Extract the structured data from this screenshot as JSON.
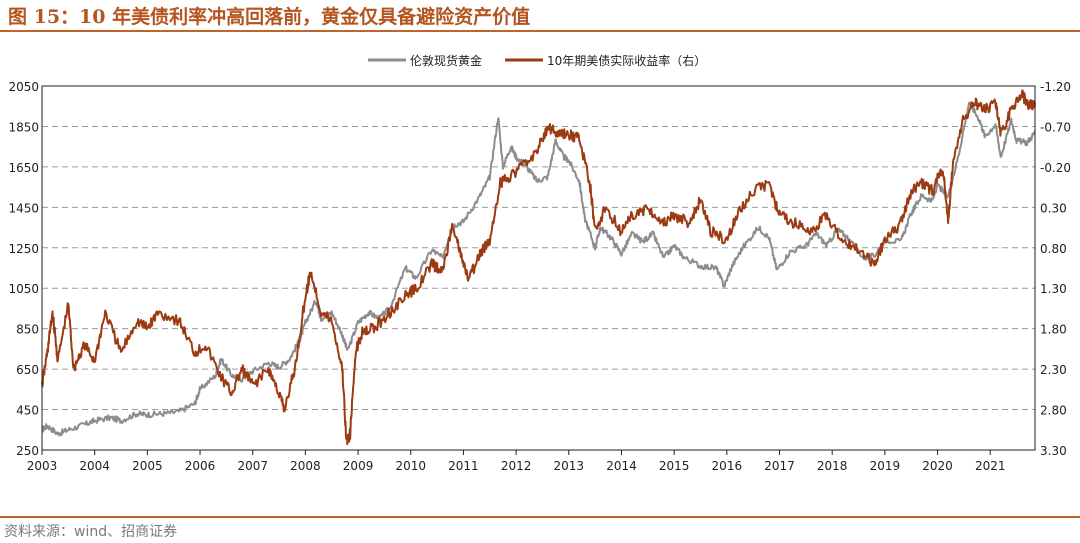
{
  "title": "图 15：10 年美债利率冲高回落前，黄金仅具备避险资产价值",
  "source": "资料来源：wind、招商证券",
  "chart_data": {
    "type": "line",
    "legend_position": "top-center",
    "grid": "horizontal-dashed",
    "x_ticks": [
      "2003",
      "2004",
      "2005",
      "2006",
      "2007",
      "2008",
      "2009",
      "2010",
      "2011",
      "2012",
      "2013",
      "2014",
      "2015",
      "2016",
      "2017",
      "2018",
      "2019",
      "2020",
      "2021"
    ],
    "x_range": [
      2003.0,
      2021.85
    ],
    "y_left": {
      "range": [
        250,
        2050
      ],
      "ticks": [
        "250",
        "450",
        "650",
        "850",
        "1050",
        "1250",
        "1450",
        "1650",
        "1850",
        "2050"
      ]
    },
    "y_right": {
      "range": [
        3.3,
        -1.2
      ],
      "inverted": true,
      "ticks": [
        "-1.20",
        "-0.70",
        "-0.20",
        "0.30",
        "0.80",
        "1.30",
        "1.80",
        "2.30",
        "2.80",
        "3.30"
      ]
    },
    "series": [
      {
        "name": "伦敦现货黄金",
        "axis": "left",
        "color": "#8c8c8c",
        "points": [
          [
            2003.0,
            350
          ],
          [
            2003.1,
            370
          ],
          [
            2003.3,
            330
          ],
          [
            2003.5,
            350
          ],
          [
            2003.8,
            375
          ],
          [
            2004.0,
            395
          ],
          [
            2004.3,
            410
          ],
          [
            2004.5,
            395
          ],
          [
            2004.8,
            430
          ],
          [
            2005.0,
            425
          ],
          [
            2005.3,
            430
          ],
          [
            2005.6,
            440
          ],
          [
            2005.9,
            480
          ],
          [
            2006.0,
            550
          ],
          [
            2006.3,
            620
          ],
          [
            2006.4,
            700
          ],
          [
            2006.6,
            620
          ],
          [
            2006.8,
            600
          ],
          [
            2007.0,
            640
          ],
          [
            2007.3,
            680
          ],
          [
            2007.5,
            660
          ],
          [
            2007.7,
            700
          ],
          [
            2007.9,
            800
          ],
          [
            2008.0,
            880
          ],
          [
            2008.2,
            990
          ],
          [
            2008.3,
            900
          ],
          [
            2008.5,
            930
          ],
          [
            2008.7,
            820
          ],
          [
            2008.8,
            740
          ],
          [
            2009.0,
            880
          ],
          [
            2009.2,
            930
          ],
          [
            2009.4,
            900
          ],
          [
            2009.6,
            950
          ],
          [
            2009.9,
            1150
          ],
          [
            2010.1,
            1100
          ],
          [
            2010.4,
            1240
          ],
          [
            2010.6,
            1200
          ],
          [
            2010.8,
            1360
          ],
          [
            2011.0,
            1380
          ],
          [
            2011.3,
            1500
          ],
          [
            2011.5,
            1600
          ],
          [
            2011.66,
            1900
          ],
          [
            2011.75,
            1650
          ],
          [
            2011.9,
            1750
          ],
          [
            2012.0,
            1700
          ],
          [
            2012.2,
            1650
          ],
          [
            2012.4,
            1580
          ],
          [
            2012.6,
            1600
          ],
          [
            2012.75,
            1780
          ],
          [
            2012.9,
            1700
          ],
          [
            2013.0,
            1680
          ],
          [
            2013.2,
            1580
          ],
          [
            2013.3,
            1400
          ],
          [
            2013.5,
            1250
          ],
          [
            2013.6,
            1350
          ],
          [
            2013.8,
            1300
          ],
          [
            2014.0,
            1220
          ],
          [
            2014.2,
            1320
          ],
          [
            2014.4,
            1280
          ],
          [
            2014.6,
            1320
          ],
          [
            2014.8,
            1200
          ],
          [
            2015.0,
            1260
          ],
          [
            2015.2,
            1200
          ],
          [
            2015.5,
            1160
          ],
          [
            2015.8,
            1150
          ],
          [
            2015.95,
            1060
          ],
          [
            2016.1,
            1160
          ],
          [
            2016.3,
            1250
          ],
          [
            2016.6,
            1350
          ],
          [
            2016.8,
            1300
          ],
          [
            2016.95,
            1140
          ],
          [
            2017.2,
            1230
          ],
          [
            2017.5,
            1260
          ],
          [
            2017.7,
            1320
          ],
          [
            2017.9,
            1260
          ],
          [
            2018.1,
            1340
          ],
          [
            2018.3,
            1300
          ],
          [
            2018.6,
            1200
          ],
          [
            2018.8,
            1210
          ],
          [
            2019.0,
            1290
          ],
          [
            2019.3,
            1280
          ],
          [
            2019.5,
            1420
          ],
          [
            2019.7,
            1510
          ],
          [
            2019.9,
            1480
          ],
          [
            2020.0,
            1560
          ],
          [
            2020.2,
            1500
          ],
          [
            2020.4,
            1710
          ],
          [
            2020.6,
            1970
          ],
          [
            2020.8,
            1880
          ],
          [
            2020.9,
            1800
          ],
          [
            2021.1,
            1860
          ],
          [
            2021.2,
            1700
          ],
          [
            2021.4,
            1880
          ],
          [
            2021.5,
            1780
          ],
          [
            2021.7,
            1770
          ],
          [
            2021.85,
            1820
          ]
        ]
      },
      {
        "name": "10年期美债实际收益率（右）",
        "axis": "right",
        "color": "#9c3b12",
        "points": [
          [
            2003.0,
            2.5
          ],
          [
            2003.1,
            2.1
          ],
          [
            2003.2,
            1.6
          ],
          [
            2003.3,
            2.2
          ],
          [
            2003.5,
            1.5
          ],
          [
            2003.6,
            2.3
          ],
          [
            2003.8,
            2.0
          ],
          [
            2004.0,
            2.2
          ],
          [
            2004.2,
            1.6
          ],
          [
            2004.5,
            2.1
          ],
          [
            2004.8,
            1.7
          ],
          [
            2005.0,
            1.8
          ],
          [
            2005.2,
            1.6
          ],
          [
            2005.6,
            1.7
          ],
          [
            2005.9,
            2.1
          ],
          [
            2006.1,
            2.0
          ],
          [
            2006.4,
            2.4
          ],
          [
            2006.6,
            2.6
          ],
          [
            2006.8,
            2.3
          ],
          [
            2007.0,
            2.5
          ],
          [
            2007.3,
            2.3
          ],
          [
            2007.5,
            2.6
          ],
          [
            2007.6,
            2.8
          ],
          [
            2007.8,
            2.3
          ],
          [
            2008.0,
            1.4
          ],
          [
            2008.1,
            1.1
          ],
          [
            2008.3,
            1.6
          ],
          [
            2008.5,
            1.7
          ],
          [
            2008.7,
            2.3
          ],
          [
            2008.78,
            3.2
          ],
          [
            2008.85,
            3.1
          ],
          [
            2008.95,
            2.1
          ],
          [
            2009.1,
            1.8
          ],
          [
            2009.3,
            1.8
          ],
          [
            2009.6,
            1.6
          ],
          [
            2009.9,
            1.4
          ],
          [
            2010.1,
            1.3
          ],
          [
            2010.4,
            1.0
          ],
          [
            2010.6,
            1.1
          ],
          [
            2010.8,
            0.5
          ],
          [
            2010.95,
            0.9
          ],
          [
            2011.1,
            1.2
          ],
          [
            2011.3,
            0.9
          ],
          [
            2011.5,
            0.7
          ],
          [
            2011.7,
            0.0
          ],
          [
            2011.9,
            -0.1
          ],
          [
            2012.1,
            -0.2
          ],
          [
            2012.4,
            -0.4
          ],
          [
            2012.6,
            -0.7
          ],
          [
            2012.8,
            -0.6
          ],
          [
            2013.0,
            -0.6
          ],
          [
            2013.2,
            -0.55
          ],
          [
            2013.4,
            0.0
          ],
          [
            2013.5,
            0.6
          ],
          [
            2013.7,
            0.3
          ],
          [
            2014.0,
            0.6
          ],
          [
            2014.2,
            0.4
          ],
          [
            2014.5,
            0.3
          ],
          [
            2014.8,
            0.5
          ],
          [
            2015.0,
            0.4
          ],
          [
            2015.3,
            0.5
          ],
          [
            2015.5,
            0.2
          ],
          [
            2015.7,
            0.6
          ],
          [
            2016.0,
            0.7
          ],
          [
            2016.2,
            0.4
          ],
          [
            2016.5,
            0.1
          ],
          [
            2016.8,
            0.0
          ],
          [
            2017.0,
            0.4
          ],
          [
            2017.3,
            0.5
          ],
          [
            2017.6,
            0.6
          ],
          [
            2017.9,
            0.4
          ],
          [
            2018.2,
            0.7
          ],
          [
            2018.5,
            0.8
          ],
          [
            2018.8,
            1.0
          ],
          [
            2019.0,
            0.7
          ],
          [
            2019.3,
            0.5
          ],
          [
            2019.5,
            0.1
          ],
          [
            2019.7,
            0.0
          ],
          [
            2019.9,
            0.1
          ],
          [
            2020.1,
            -0.2
          ],
          [
            2020.2,
            0.5
          ],
          [
            2020.3,
            -0.3
          ],
          [
            2020.5,
            -0.8
          ],
          [
            2020.7,
            -1.0
          ],
          [
            2020.9,
            -0.9
          ],
          [
            2021.1,
            -1.0
          ],
          [
            2021.2,
            -0.6
          ],
          [
            2021.4,
            -0.9
          ],
          [
            2021.6,
            -1.1
          ],
          [
            2021.75,
            -0.95
          ],
          [
            2021.85,
            -1.0
          ]
        ]
      }
    ]
  }
}
